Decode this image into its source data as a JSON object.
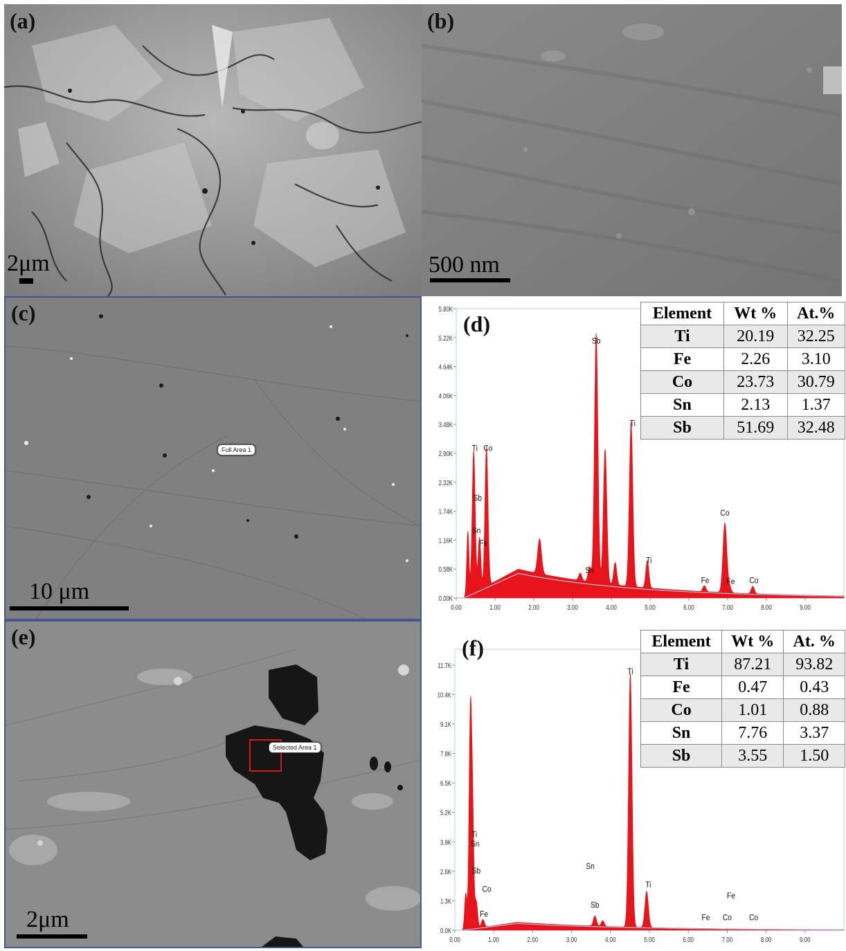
{
  "panels": {
    "a": {
      "label": "(a)",
      "scale": "2μm"
    },
    "b": {
      "label": "(b)",
      "scale": "500 nm"
    },
    "c": {
      "label": "(c)",
      "scale": "10 μm",
      "area_tag": "Full Area 1"
    },
    "d": {
      "label": "(d)"
    },
    "e": {
      "label": "(e)",
      "scale": "2μm",
      "area_tag": "Selected Area 1"
    },
    "f": {
      "label": "(f)"
    }
  },
  "colors": {
    "spectrum_fill": "#e8141b",
    "frame": "#41578d",
    "background_line": "#9fc6e0"
  },
  "chart_data": [
    {
      "type": "area",
      "panel": "d",
      "y_ticks": [
        "0.00K",
        "0.58K",
        "1.16K",
        "1.74K",
        "2.32K",
        "2.90K",
        "3.48K",
        "4.06K",
        "4.64K",
        "5.22K",
        "5.80K"
      ],
      "x_ticks": [
        "0.00",
        "1.00",
        "2.00",
        "3.00",
        "4.00",
        "5.00",
        "6.00",
        "7.00",
        "8.00",
        "9.00"
      ],
      "xlim": [
        0,
        10
      ],
      "ylim": [
        0,
        5.8
      ],
      "peaks": [
        {
          "x": 0.3,
          "y": 1.3,
          "w": 0.03
        },
        {
          "x": 0.45,
          "y": 2.85,
          "w": 0.04
        },
        {
          "x": 0.6,
          "y": 1.05,
          "w": 0.035
        },
        {
          "x": 0.78,
          "y": 2.8,
          "w": 0.04
        },
        {
          "x": 2.15,
          "y": 0.7,
          "w": 0.05
        },
        {
          "x": 3.2,
          "y": 0.15,
          "w": 0.04
        },
        {
          "x": 3.44,
          "y": 0.3,
          "w": 0.04
        },
        {
          "x": 3.61,
          "y": 5.0,
          "w": 0.045
        },
        {
          "x": 3.84,
          "y": 2.7,
          "w": 0.045
        },
        {
          "x": 4.1,
          "y": 0.45,
          "w": 0.04
        },
        {
          "x": 4.51,
          "y": 3.3,
          "w": 0.045
        },
        {
          "x": 4.93,
          "y": 0.55,
          "w": 0.04
        },
        {
          "x": 6.4,
          "y": 0.12,
          "w": 0.04
        },
        {
          "x": 6.93,
          "y": 1.4,
          "w": 0.05
        },
        {
          "x": 7.05,
          "y": 0.12,
          "w": 0.04
        },
        {
          "x": 7.65,
          "y": 0.15,
          "w": 0.04
        }
      ],
      "background": {
        "peak_x": 1.6,
        "peak_y": 0.58
      },
      "peak_labels": [
        {
          "x": 0.48,
          "y": 2.95,
          "text": "Ti"
        },
        {
          "x": 0.82,
          "y": 2.95,
          "text": "Co"
        },
        {
          "x": 0.55,
          "y": 1.95,
          "text": "Sb"
        },
        {
          "x": 0.52,
          "y": 1.3,
          "text": "Sn"
        },
        {
          "x": 0.7,
          "y": 1.05,
          "text": "Fe"
        },
        {
          "x": 3.61,
          "y": 5.1,
          "text": "Sb"
        },
        {
          "x": 4.55,
          "y": 3.45,
          "text": "Ti"
        },
        {
          "x": 3.44,
          "y": 0.5,
          "text": "Sn"
        },
        {
          "x": 4.97,
          "y": 0.7,
          "text": "Ti"
        },
        {
          "x": 6.93,
          "y": 1.65,
          "text": "Co"
        },
        {
          "x": 6.42,
          "y": 0.3,
          "text": "Fe"
        },
        {
          "x": 7.08,
          "y": 0.28,
          "text": "Fe"
        },
        {
          "x": 7.68,
          "y": 0.3,
          "text": "Co"
        }
      ],
      "table": {
        "headers": [
          "Element",
          "Wt %",
          "At.%"
        ],
        "rows": [
          [
            "Ti",
            "20.19",
            "32.25"
          ],
          [
            "Fe",
            "2.26",
            "3.10"
          ],
          [
            "Co",
            "23.73",
            "30.79"
          ],
          [
            "Sn",
            "2.13",
            "1.37"
          ],
          [
            "Sb",
            "51.69",
            "32.48"
          ]
        ]
      }
    },
    {
      "type": "area",
      "panel": "f",
      "y_ticks": [
        "0.0K",
        "1.3K",
        "2.6K",
        "3.9K",
        "5.2K",
        "6.5K",
        "7.8K",
        "9.1K",
        "10.4K",
        "11.7K"
      ],
      "x_ticks": [
        "0.00",
        "1.00",
        "2.00",
        "3.00",
        "4.00",
        "5.00",
        "6.00",
        "7.00",
        "8.00",
        "9.00"
      ],
      "xlim": [
        0,
        10
      ],
      "ylim": [
        0,
        12.4
      ],
      "peaks": [
        {
          "x": 0.28,
          "y": 1.6,
          "w": 0.03
        },
        {
          "x": 0.4,
          "y": 9.6,
          "w": 0.035
        },
        {
          "x": 0.46,
          "y": 4.2,
          "w": 0.03
        },
        {
          "x": 0.55,
          "y": 1.2,
          "w": 0.035
        },
        {
          "x": 0.72,
          "y": 0.35,
          "w": 0.04
        },
        {
          "x": 3.6,
          "y": 0.45,
          "w": 0.04
        },
        {
          "x": 3.8,
          "y": 0.25,
          "w": 0.04
        },
        {
          "x": 4.51,
          "y": 11.2,
          "w": 0.045
        },
        {
          "x": 4.93,
          "y": 1.6,
          "w": 0.045
        }
      ],
      "background": {
        "peak_x": 1.6,
        "peak_y": 0.35
      },
      "peak_labels": [
        {
          "x": 4.51,
          "y": 11.3,
          "text": "Ti"
        },
        {
          "x": 0.5,
          "y": 4.1,
          "text": "Ti"
        },
        {
          "x": 0.52,
          "y": 3.7,
          "text": "Sn"
        },
        {
          "x": 0.55,
          "y": 2.5,
          "text": "Sb"
        },
        {
          "x": 0.82,
          "y": 1.7,
          "text": "Co"
        },
        {
          "x": 0.75,
          "y": 0.6,
          "text": "Fe"
        },
        {
          "x": 3.48,
          "y": 2.7,
          "text": "Sn"
        },
        {
          "x": 3.6,
          "y": 1.0,
          "text": "Sb"
        },
        {
          "x": 4.97,
          "y": 1.9,
          "text": "Ti"
        },
        {
          "x": 6.45,
          "y": 0.45,
          "text": "Fe"
        },
        {
          "x": 7.1,
          "y": 1.4,
          "text": "Fe"
        },
        {
          "x": 7.0,
          "y": 0.45,
          "text": "Co"
        },
        {
          "x": 7.68,
          "y": 0.45,
          "text": "Co"
        }
      ],
      "table": {
        "headers": [
          "Element",
          "Wt %",
          "At. %"
        ],
        "rows": [
          [
            "Ti",
            "87.21",
            "93.82"
          ],
          [
            "Fe",
            "0.47",
            "0.43"
          ],
          [
            "Co",
            "1.01",
            "0.88"
          ],
          [
            "Sn",
            "7.76",
            "3.37"
          ],
          [
            "Sb",
            "3.55",
            "1.50"
          ]
        ]
      }
    }
  ]
}
